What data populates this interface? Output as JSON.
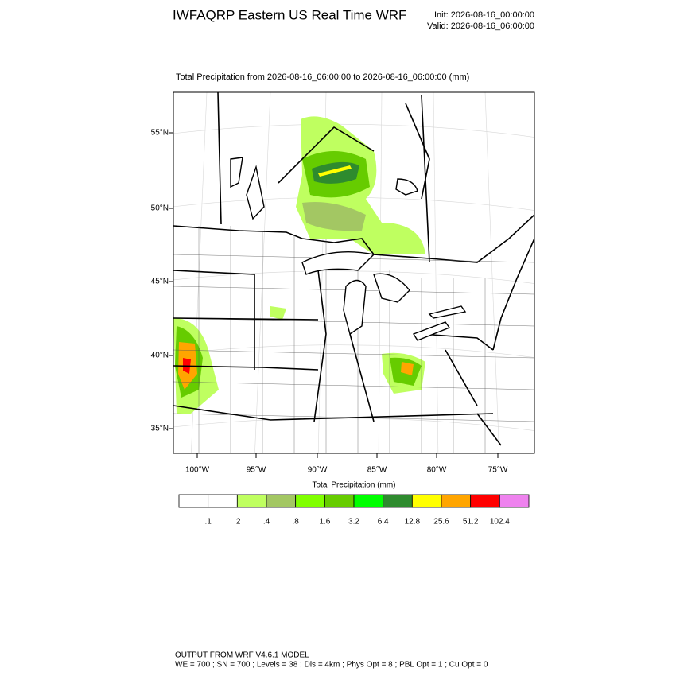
{
  "header": {
    "title": "IWFAQRP Eastern US Real Time WRF",
    "init": "Init: 2026-08-16_00:00:00",
    "valid": "Valid: 2026-08-16_06:00:00"
  },
  "map": {
    "title": "Total Precipitation from 2026-08-16_06:00:00 to 2026-08-16_06:00:00   (mm)",
    "lat_labels": [
      "55°N",
      "50°N",
      "45°N",
      "40°N",
      "35°N"
    ],
    "lon_labels": [
      "100°W",
      "95°W",
      "90°W",
      "85°W",
      "80°W",
      "75°W"
    ]
  },
  "colorbar": {
    "title": "Total Precipitation  (mm)",
    "colors": [
      "#ffffff",
      "#ffffff",
      "#bfff60",
      "#a3c763",
      "#80ff00",
      "#66cc00",
      "#00ff00",
      "#2e8b2e",
      "#ffff00",
      "#ffa500",
      "#ff0000",
      "#ee82ee"
    ],
    "labels": [
      ".1",
      ".2",
      ".4",
      ".8",
      "1.6",
      "3.2",
      "6.4",
      "12.8",
      "25.6",
      "51.2",
      "102.4"
    ]
  },
  "footer": {
    "line1": "OUTPUT FROM WRF V4.6.1 MODEL",
    "line2": "WE = 700 ; SN = 700 ; Levels = 38 ; Dis = 4km ; Phys Opt = 8 ; PBL Opt = 1 ; Cu Opt = 0"
  }
}
